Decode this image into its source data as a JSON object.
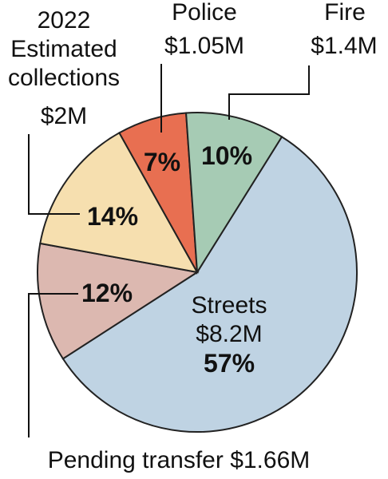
{
  "chart_data": {
    "type": "pie",
    "title": "",
    "slices": [
      {
        "key": "streets",
        "label": "Streets",
        "amount": "$8.2M",
        "percent": "57%",
        "value": 57,
        "color": "#bfd3e3"
      },
      {
        "key": "pending",
        "label": "Pending transfer",
        "amount": "$1.66M",
        "percent": "12%",
        "value": 12,
        "color": "#dcb8b0"
      },
      {
        "key": "collections",
        "label": "2022 Estimated collections",
        "label_lines": [
          "2022",
          "Estimated",
          "collections"
        ],
        "amount": "$2M",
        "percent": "14%",
        "value": 14,
        "color": "#f6dfaf"
      },
      {
        "key": "police",
        "label": "Police",
        "amount": "$1.05M",
        "percent": "7%",
        "value": 7,
        "color": "#e86f51"
      },
      {
        "key": "fire",
        "label": "Fire",
        "amount": "$1.4M",
        "percent": "10%",
        "value": 10,
        "color": "#a6cbb4"
      }
    ],
    "pending_label": "Pending transfer $1.66M"
  }
}
